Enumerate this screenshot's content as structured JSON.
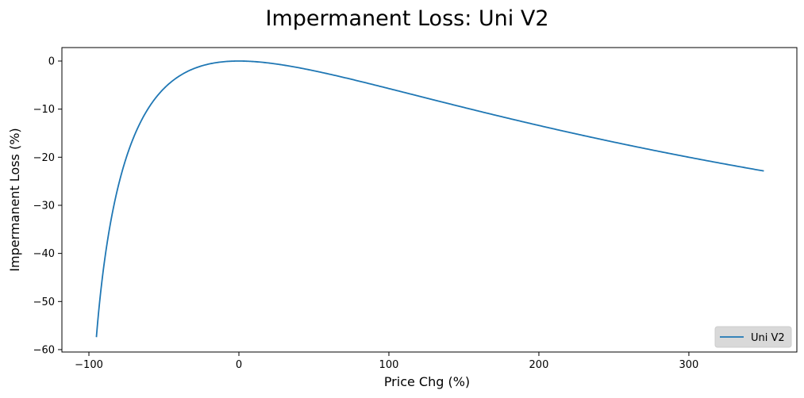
{
  "chart_data": {
    "type": "line",
    "title": "Impermanent Loss: Uni V2",
    "xlabel": "Price Chg (%)",
    "ylabel": "Impermanent Loss (%)",
    "xlim": [
      -118,
      372
    ],
    "ylim": [
      -60.5,
      2.8
    ],
    "x_ticks": [
      -100,
      0,
      100,
      200,
      300
    ],
    "y_ticks": [
      0,
      -10,
      -20,
      -30,
      -40,
      -50,
      -60
    ],
    "x_tick_labels": [
      "−100",
      "0",
      "100",
      "200",
      "300"
    ],
    "y_tick_labels": [
      "0",
      "−10",
      "−20",
      "−30",
      "−40",
      "−50",
      "−60"
    ],
    "grid": false,
    "legend_position": "lower-right",
    "x_range": [
      -95,
      350
    ],
    "formula": "2*sqrt(1+x/100)/(2+x/100)-1",
    "series": [
      {
        "name": "Uni V2",
        "color": "#1f77b4"
      }
    ]
  },
  "colors": {
    "axes": "#000000",
    "legend_bg": "#d9d9d9",
    "legend_border": "#cccccc"
  }
}
